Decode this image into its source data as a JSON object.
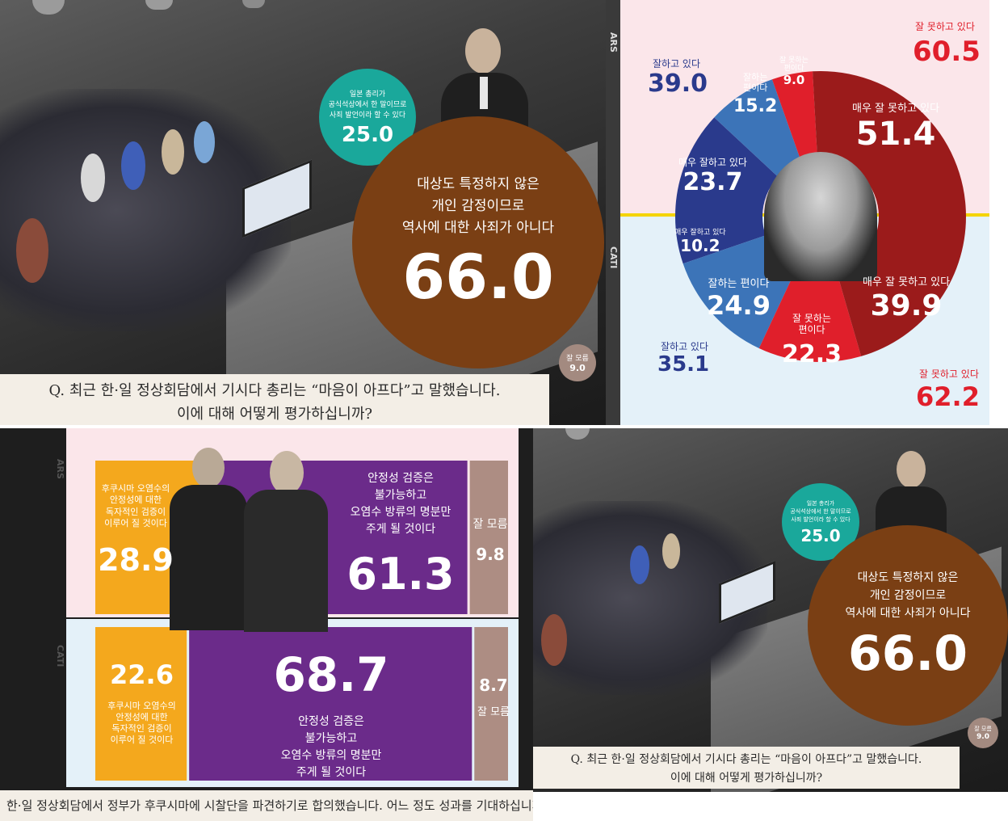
{
  "top_left": {
    "question_line1": "Q. 최근 한·일 정상회담에서 기시다 총리는 “마음이 아프다”고 말했습니다.",
    "question_line2": "이에 대해 어떻게 평가하십니까?",
    "main_label_1": "대상도 특정하지 않은",
    "main_label_2": "개인 감정이므로",
    "main_label_3": "역사에 대한 사죄가 아니다",
    "main_value": "66.0",
    "teal_label_1": "일본 총리가",
    "teal_label_2": "공식석상에서 한 말이므로",
    "teal_label_3": "사죄 발언이라 할 수 있다",
    "teal_value": "25.0",
    "dk_label": "잘 모름",
    "dk_value": "9.0"
  },
  "top_right": {
    "ars_tag": "ARS",
    "cati_tag": "CATI",
    "ars": {
      "good_total_label": "잘하고 있다",
      "good_total": "39.0",
      "bad_total_label": "잘 못하고 있다",
      "bad_total": "60.5",
      "seg_somewhat_good_label_1": "잘하는",
      "seg_somewhat_good_label_2": "편이다",
      "seg_somewhat_good": "15.2",
      "seg_very_good_label": "매우 잘하고 있다",
      "seg_very_good": "23.7",
      "seg_somewhat_bad_label_1": "잘 못하는",
      "seg_somewhat_bad_label_2": "편이다",
      "seg_somewhat_bad": "9.0",
      "seg_very_bad_label": "매우 잘 못하고 있다",
      "seg_very_bad": "51.4"
    },
    "cati": {
      "seg_very_good_label": "매우 잘하고 있다",
      "seg_very_good": "10.2",
      "seg_somewhat_good_label": "잘하는 편이다",
      "seg_somewhat_good": "24.9",
      "good_total_label": "잘하고 있다",
      "good_total": "35.1",
      "seg_somewhat_bad_label_1": "잘 못하는",
      "seg_somewhat_bad_label_2": "편이다",
      "seg_somewhat_bad": "22.3",
      "seg_very_bad_label": "매우 잘 못하고 있다",
      "seg_very_bad": "39.9",
      "bad_total_label": "잘 못하고 있다",
      "bad_total": "62.2"
    }
  },
  "bottom_left": {
    "ars_tag": "ARS",
    "cati_tag": "CATI",
    "ars": {
      "yes_label_1": "후쿠시마 오염수의",
      "yes_label_2": "안정성에 대한",
      "yes_label_3": "독자적인 검증이",
      "yes_label_4": "이루어 질 것이다",
      "yes_value": "28.9",
      "no_label_1": "안정성 검증은",
      "no_label_2": "불가능하고",
      "no_label_3": "오염수 방류의 명분만",
      "no_label_4": "주게 될 것이다",
      "no_value": "61.3",
      "dk_label": "잘 모름",
      "dk_value": "9.8"
    },
    "cati": {
      "yes_label_1": "후쿠시마 오염수의",
      "yes_label_2": "안정성에 대한",
      "yes_label_3": "독자적인 검증이",
      "yes_label_4": "이루어 질 것이다",
      "yes_value": "22.6",
      "no_label_1": "안정성 검증은",
      "no_label_2": "불가능하고",
      "no_label_3": "오염수 방류의 명분만",
      "no_label_4": "주게 될 것이다",
      "no_value": "68.7",
      "dk_label": "잘 모름",
      "dk_value": "8.7"
    },
    "question": "한·일 정상회담에서 정부가 후쿠시마에 시찰단을 파견하기로 합의했습니다. 어느 정도 성과를 기대하십니까?"
  },
  "bottom_right": {
    "question_line1": "Q. 최근 한·일 정상회담에서 기시다 총리는 “마음이 아프다”고 말했습니다.",
    "question_line2": "이에 대해 어떻게 평가하십니까?",
    "main_label_1": "대상도 특정하지 않은",
    "main_label_2": "개인 감정이므로",
    "main_label_3": "역사에 대한 사죄가 아니다",
    "main_value": "66.0",
    "teal_label_1": "일본 총리가",
    "teal_label_2": "공식석상에서 한 말이므로",
    "teal_label_3": "사죄 발언이라 할 수 있다",
    "teal_value": "25.0",
    "dk_label": "잘 모름",
    "dk_value": "9.0"
  },
  "colors": {
    "brown": "#7a3f14",
    "teal": "#1aa89b",
    "navy": "#2a3a8c",
    "blue": "#3c74b8",
    "red": "#e01f2b",
    "darkred": "#9b1b1b",
    "orange": "#f4a81d",
    "purple": "#6b2b8a",
    "taupe": "#ad8d83"
  },
  "chart_data": [
    {
      "type": "pie",
      "title": "Q. 최근 한·일 정상회담에서 기시다 총리는 “마음이 아프다”고 말했습니다. 이에 대해 어떻게 평가하십니까?",
      "categories": [
        "대상도 특정하지 않은 개인 감정이므로 역사에 대한 사죄가 아니다",
        "일본 총리가 공식석상에서 한 말이므로 사죄 발언이라 할 수 있다",
        "잘 모름"
      ],
      "values": [
        66.0,
        25.0,
        9.0
      ]
    },
    {
      "type": "pie",
      "series": [
        {
          "name": "ARS",
          "categories": [
            "매우 잘하고 있다",
            "잘하는 편이다",
            "잘 못하는 편이다",
            "매우 잘 못하고 있다"
          ],
          "values": [
            23.7,
            15.2,
            9.0,
            51.4
          ]
        },
        {
          "name": "CATI",
          "categories": [
            "매우 잘하고 있다",
            "잘하는 편이다",
            "잘 못하는 편이다",
            "매우 잘 못하고 있다"
          ],
          "values": [
            10.2,
            24.9,
            22.3,
            39.9
          ]
        }
      ],
      "totals": {
        "ARS": {
          "잘하고 있다": 39.0,
          "잘 못하고 있다": 60.5
        },
        "CATI": {
          "잘하고 있다": 35.1,
          "잘 못하고 있다": 62.2
        }
      }
    },
    {
      "type": "bar",
      "title": "한·일 정상회담에서 정부가 후쿠시마에 시찰단을 파견하기로 합의했습니다. 어느 정도 성과를 기대하십니까?",
      "categories": [
        "ARS",
        "CATI"
      ],
      "series": [
        {
          "name": "후쿠시마 오염수의 안정성에 대한 독자적인 검증이 이루어 질 것이다",
          "values": [
            28.9,
            22.6
          ]
        },
        {
          "name": "안정성 검증은 불가능하고 오염수 방류의 명분만 주게 될 것이다",
          "values": [
            61.3,
            68.7
          ]
        },
        {
          "name": "잘 모름",
          "values": [
            9.8,
            8.7
          ]
        }
      ]
    },
    {
      "type": "pie",
      "title": "Q. 최근 한·일 정상회담에서 기시다 총리는 “마음이 아프다”고 말했습니다. 이에 대해 어떻게 평가하십니까?",
      "categories": [
        "대상도 특정하지 않은 개인 감정이므로 역사에 대한 사죄가 아니다",
        "일본 총리가 공식석상에서 한 말이므로 사죄 발언이라 할 수 있다",
        "잘 모름"
      ],
      "values": [
        66.0,
        25.0,
        9.0
      ]
    }
  ]
}
